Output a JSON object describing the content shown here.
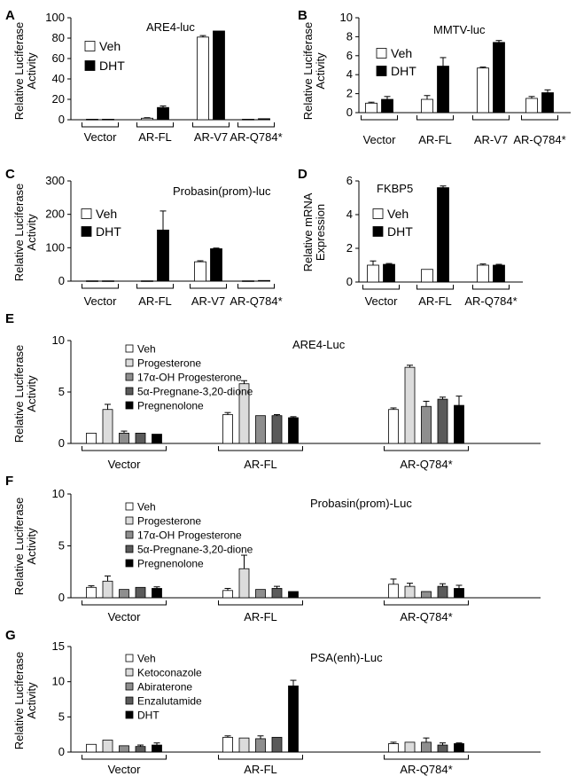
{
  "figure": {
    "legend_labels": {
      "veh": "Veh",
      "dht": "DHT"
    },
    "colors": {
      "veh": "#ffffff",
      "dht": "#000000",
      "progesterone": "#dcdcdc",
      "oh_progesterone": "#8e8e8e",
      "pregnane": "#5a5a5a",
      "pregnenolone": "#000000",
      "ketoconazole": "#dcdcdc",
      "abiraterone": "#8e8e8e",
      "enzalutamide": "#5a5a5a"
    }
  },
  "chart_data": [
    {
      "panel": "A",
      "type": "bar",
      "title": "ARE4-luc",
      "ylabel": "Relative Luciferase Activity",
      "ylim": [
        0,
        100
      ],
      "yticks": [
        0,
        20,
        40,
        60,
        80,
        100
      ],
      "categories": [
        "Vector",
        "AR-FL",
        "AR-V7",
        "AR-Q784*"
      ],
      "series": [
        {
          "name": "Veh",
          "color_key": "veh",
          "values": [
            0.5,
            1.5,
            81,
            0.5
          ],
          "errors": [
            0,
            0.5,
            1.5,
            0
          ]
        },
        {
          "name": "DHT",
          "color_key": "dht",
          "values": [
            0.5,
            12,
            87,
            1
          ],
          "errors": [
            0,
            1.5,
            0,
            0
          ]
        }
      ]
    },
    {
      "panel": "B",
      "type": "bar",
      "title": "MMTV-luc",
      "ylabel": "Relative Luciferase Activity",
      "ylim": [
        0,
        10
      ],
      "yticks": [
        0,
        2,
        4,
        6,
        8,
        10
      ],
      "categories": [
        "Vector",
        "AR-FL",
        "AR-V7",
        "AR-Q784*"
      ],
      "series": [
        {
          "name": "Veh",
          "color_key": "veh",
          "values": [
            1.0,
            1.4,
            4.7,
            1.5
          ],
          "errors": [
            0.1,
            0.4,
            0.1,
            0.2
          ]
        },
        {
          "name": "DHT",
          "color_key": "dht",
          "values": [
            1.4,
            4.9,
            7.4,
            2.1
          ],
          "errors": [
            0.3,
            0.9,
            0.2,
            0.3
          ]
        }
      ]
    },
    {
      "panel": "C",
      "type": "bar",
      "title": "Probasin(prom)-luc",
      "ylabel": "Relative Luciferase Activity",
      "ylim": [
        0,
        300
      ],
      "yticks": [
        0,
        100,
        200,
        300
      ],
      "categories": [
        "Vector",
        "AR-FL",
        "AR-V7",
        "AR-Q784*"
      ],
      "series": [
        {
          "name": "Veh",
          "color_key": "veh",
          "values": [
            1,
            1,
            58,
            1
          ],
          "errors": [
            0,
            0,
            3,
            0
          ]
        },
        {
          "name": "DHT",
          "color_key": "dht",
          "values": [
            1,
            153,
            97,
            2
          ],
          "errors": [
            0,
            57,
            2,
            0
          ]
        }
      ]
    },
    {
      "panel": "D",
      "type": "bar",
      "title": "FKBP5",
      "ylabel": "Relative mRNA Expression",
      "ylim": [
        0,
        6
      ],
      "yticks": [
        0,
        2,
        4,
        6
      ],
      "categories": [
        "Vector",
        "AR-FL",
        "AR-Q784*"
      ],
      "series": [
        {
          "name": "Veh",
          "color_key": "veh",
          "values": [
            1.0,
            0.75,
            1.0
          ],
          "errors": [
            0.25,
            0,
            0.07
          ]
        },
        {
          "name": "DHT",
          "color_key": "dht",
          "values": [
            1.05,
            5.6,
            1.0
          ],
          "errors": [
            0.05,
            0.1,
            0.05
          ]
        }
      ]
    },
    {
      "panel": "E",
      "type": "bar",
      "title": "ARE4-Luc",
      "ylabel": "Relative Luciferase Activity",
      "ylim": [
        0,
        10
      ],
      "yticks": [
        0,
        5,
        10
      ],
      "categories": [
        "Vector",
        "AR-FL",
        "AR-Q784*"
      ],
      "series": [
        {
          "name": "Veh",
          "color_key": "veh",
          "values": [
            1.0,
            2.8,
            3.3
          ],
          "errors": [
            0,
            0.2,
            0.15
          ]
        },
        {
          "name": "Progesterone",
          "color_key": "progesterone",
          "values": [
            3.3,
            5.8,
            7.4
          ],
          "errors": [
            0.5,
            0.3,
            0.2
          ]
        },
        {
          "name": "17α-OH Progesterone",
          "color_key": "oh_progesterone",
          "values": [
            1.0,
            2.7,
            3.6
          ],
          "errors": [
            0.2,
            0,
            0.5
          ]
        },
        {
          "name": "5α-Pregnane-3,20-dione",
          "color_key": "pregnane",
          "values": [
            1.0,
            2.7,
            4.3
          ],
          "errors": [
            0,
            0.1,
            0.2
          ]
        },
        {
          "name": "Pregnenolone",
          "color_key": "pregnenolone",
          "values": [
            0.9,
            2.5,
            3.7
          ],
          "errors": [
            0,
            0.1,
            0.9
          ]
        }
      ]
    },
    {
      "panel": "F",
      "type": "bar",
      "title": "Probasin(prom)-Luc",
      "ylabel": "Relative Luciferase Activity",
      "ylim": [
        0,
        10
      ],
      "yticks": [
        0,
        5,
        10
      ],
      "categories": [
        "Vector",
        "AR-FL",
        "AR-Q784*"
      ],
      "series": [
        {
          "name": "Veh",
          "color_key": "veh",
          "values": [
            1.0,
            0.7,
            1.3
          ],
          "errors": [
            0.15,
            0.2,
            0.5
          ]
        },
        {
          "name": "Progesterone",
          "color_key": "progesterone",
          "values": [
            1.6,
            2.8,
            1.1
          ],
          "errors": [
            0.5,
            1.3,
            0.3
          ]
        },
        {
          "name": "17α-OH Progesterone",
          "color_key": "oh_progesterone",
          "values": [
            0.8,
            0.8,
            0.6
          ],
          "errors": [
            0,
            0,
            0
          ]
        },
        {
          "name": "5α-Pregnane-3,20-dione",
          "color_key": "pregnane",
          "values": [
            1.0,
            0.9,
            1.1
          ],
          "errors": [
            0,
            0.2,
            0.25
          ]
        },
        {
          "name": "Pregnenolone",
          "color_key": "pregnenolone",
          "values": [
            0.9,
            0.6,
            0.9
          ],
          "errors": [
            0.15,
            0,
            0.3
          ]
        }
      ]
    },
    {
      "panel": "G",
      "type": "bar",
      "title": "PSA(enh)-Luc",
      "ylabel": "Relative Luciferase Activity",
      "ylim": [
        0,
        15
      ],
      "yticks": [
        0,
        5,
        10,
        15
      ],
      "categories": [
        "Vector",
        "AR-FL",
        "AR-Q784*"
      ],
      "series": [
        {
          "name": "Veh",
          "color_key": "veh",
          "values": [
            1.1,
            2.1,
            1.2
          ],
          "errors": [
            0,
            0.2,
            0.2
          ]
        },
        {
          "name": "Ketoconazole",
          "color_key": "ketoconazole",
          "values": [
            1.7,
            2.0,
            1.4
          ],
          "errors": [
            0,
            0,
            0
          ]
        },
        {
          "name": "Abiraterone",
          "color_key": "abiraterone",
          "values": [
            0.9,
            1.9,
            1.4
          ],
          "errors": [
            0,
            0.4,
            0.6
          ]
        },
        {
          "name": "Enzalutamide",
          "color_key": "enzalutamide",
          "values": [
            0.8,
            2.1,
            1.0
          ],
          "errors": [
            0.2,
            0,
            0.3
          ]
        },
        {
          "name": "DHT",
          "color_key": "dht",
          "values": [
            1.0,
            9.4,
            1.2
          ],
          "errors": [
            0.3,
            0.8,
            0.1
          ]
        }
      ]
    }
  ]
}
